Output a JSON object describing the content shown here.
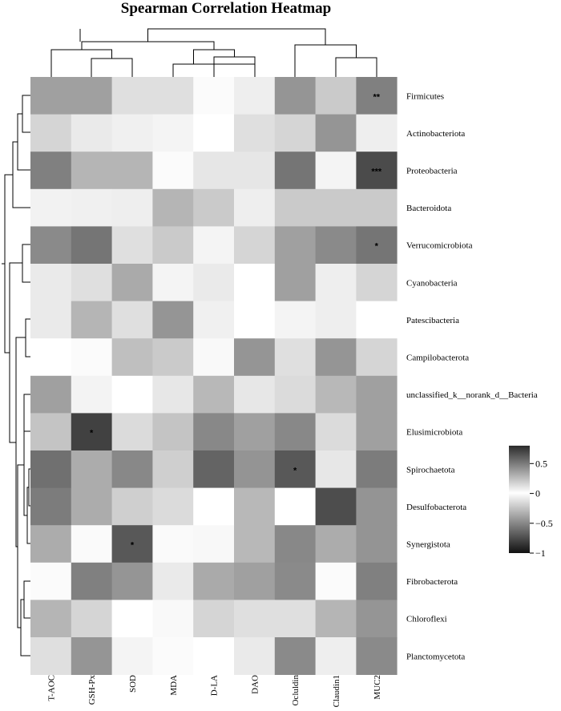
{
  "chart_data": {
    "type": "heatmap",
    "title": "Spearman Correlation Heatmap",
    "columns": [
      "T-AOC",
      "GSH-Px",
      "SOD",
      "MDA",
      "D-LA",
      "DAO",
      "Ocluldin",
      "Claudin1",
      "MUC2"
    ],
    "rows": [
      "Firmicutes",
      "Actinobacteriota",
      "Proteobacteria",
      "Bacteroidota",
      "Verrucomicrobiota",
      "Cyanobacteria",
      "Patescibacteria",
      "Campilobacterota",
      "unclassified_k__norank_d__Bacteria",
      "Elusimicrobiota",
      "Spirochaetota",
      "Desulfobacterota",
      "Synergistota",
      "Fibrobacterota",
      "Chloroflexi",
      "Planctomycetota"
    ],
    "values": [
      [
        0.45,
        0.45,
        0.15,
        0.15,
        0.02,
        0.08,
        0.5,
        0.25,
        0.6
      ],
      [
        0.2,
        0.1,
        0.07,
        0.05,
        0.0,
        0.15,
        0.2,
        0.5,
        0.08
      ],
      [
        0.6,
        0.35,
        0.35,
        0.02,
        0.12,
        0.12,
        0.65,
        0.05,
        0.85
      ],
      [
        0.06,
        0.07,
        0.08,
        0.35,
        0.25,
        0.08,
        0.25,
        0.25,
        0.25
      ],
      [
        0.55,
        0.65,
        0.15,
        0.25,
        0.05,
        0.2,
        0.45,
        0.55,
        0.65
      ],
      [
        0.1,
        0.15,
        0.4,
        0.05,
        0.1,
        0.0,
        0.45,
        0.08,
        0.2
      ],
      [
        0.1,
        0.35,
        0.15,
        0.5,
        0.07,
        0.0,
        0.05,
        0.08,
        0.0
      ],
      [
        0.0,
        0.02,
        0.3,
        0.25,
        0.03,
        0.5,
        0.15,
        0.5,
        0.2
      ],
      [
        -0.4,
        -0.05,
        0.0,
        -0.1,
        -0.3,
        -0.1,
        -0.15,
        -0.3,
        -0.4
      ],
      [
        -0.25,
        -0.8,
        -0.15,
        -0.25,
        -0.5,
        -0.4,
        -0.5,
        -0.15,
        -0.4
      ],
      [
        -0.6,
        -0.35,
        -0.5,
        -0.2,
        -0.65,
        -0.45,
        -0.7,
        -0.1,
        -0.55
      ],
      [
        -0.55,
        -0.35,
        -0.2,
        -0.15,
        0.0,
        -0.3,
        0.0,
        -0.75,
        -0.45
      ],
      [
        -0.35,
        -0.02,
        -0.7,
        -0.02,
        -0.03,
        -0.3,
        -0.5,
        -0.35,
        -0.45
      ],
      [
        0.02,
        0.6,
        0.5,
        0.1,
        0.4,
        0.45,
        0.55,
        0.02,
        0.6
      ],
      [
        0.35,
        0.2,
        0.0,
        0.03,
        0.2,
        0.15,
        0.15,
        0.35,
        0.5
      ],
      [
        0.15,
        0.5,
        0.05,
        0.02,
        0.0,
        0.1,
        0.55,
        0.08,
        0.55
      ]
    ],
    "significance": [
      {
        "row": 0,
        "col": 8,
        "label": "**"
      },
      {
        "row": 2,
        "col": 8,
        "label": "***"
      },
      {
        "row": 4,
        "col": 8,
        "label": "*"
      },
      {
        "row": 9,
        "col": 1,
        "label": "*"
      },
      {
        "row": 10,
        "col": 6,
        "label": "*"
      },
      {
        "row": 12,
        "col": 2,
        "label": "*"
      }
    ],
    "colorbar": {
      "ticks": [
        0.5,
        0,
        -0.5,
        -1
      ],
      "tick_labels": [
        "0.5",
        "0",
        "−0.5",
        "−1"
      ],
      "range": [
        -1,
        0.8
      ],
      "colors": {
        "high": "#2b2b2b",
        "mid": "#ffffff",
        "low": "#111111"
      }
    }
  }
}
